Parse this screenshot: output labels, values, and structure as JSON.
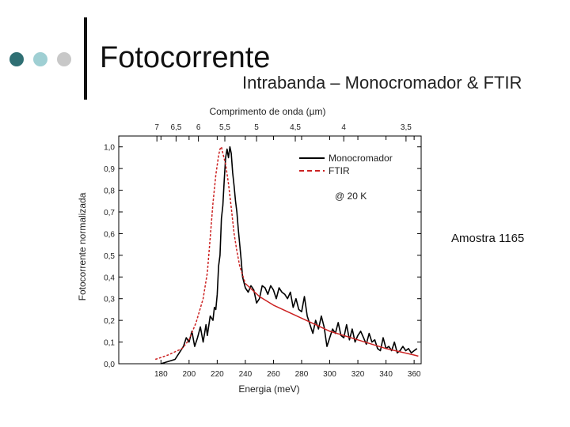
{
  "slide": {
    "title": "Fotocorrente",
    "subtitle": "Intrabanda – Monocromador & FTIR",
    "sample_label": "Amostra 1165",
    "bullet_colors": [
      "#2f6f73",
      "#9fcfd3",
      "#c8c8c8"
    ]
  },
  "chart_data": {
    "type": "line",
    "title": "",
    "xlabel": "Energia (meV)",
    "ylabel": "Fotocorrente normalizada",
    "x2label": "Comprimento de onda (µm)",
    "xlim": [
      150,
      365
    ],
    "ylim": [
      0,
      1.05
    ],
    "xticks": [
      "180",
      "200",
      "220",
      "240",
      "260",
      "280",
      "300",
      "320",
      "340",
      "360"
    ],
    "yticks": [
      "0,0",
      "0,1",
      "0,2",
      "0,3",
      "0,4",
      "0,5",
      "0,6",
      "0,7",
      "0,8",
      "0,9",
      "1,0"
    ],
    "top_ticks": [
      {
        "um": 7,
        "label": "7"
      },
      {
        "um": 6.5,
        "label": "6,5"
      },
      {
        "um": 6,
        "label": "6"
      },
      {
        "um": 5.5,
        "label": "5,5"
      },
      {
        "um": 5,
        "label": "5"
      },
      {
        "um": 4.5,
        "label": "4,5"
      },
      {
        "um": 4,
        "label": "4"
      },
      {
        "um": 3.5,
        "label": "3,5"
      }
    ],
    "annotation": "@ 20 K",
    "legend_position": "top-right",
    "grid": false,
    "series": [
      {
        "name": "Monocromador",
        "color": "#000000",
        "style": "solid",
        "x": [
          180,
          190,
          193,
          196,
          198,
          200,
          202,
          204,
          206,
          208,
          210,
          212,
          213,
          215,
          217,
          218,
          219,
          220,
          221,
          222,
          223,
          224,
          225,
          226,
          227,
          228,
          229,
          230,
          231,
          232,
          233,
          234,
          235,
          236,
          237,
          238,
          240,
          242,
          244,
          246,
          248,
          250,
          252,
          254,
          256,
          258,
          260,
          262,
          264,
          266,
          268,
          270,
          272,
          274,
          276,
          278,
          280,
          282,
          284,
          286,
          288,
          290,
          292,
          294,
          296,
          298,
          300,
          302,
          304,
          306,
          308,
          310,
          312,
          314,
          316,
          318,
          320,
          322,
          324,
          326,
          328,
          330,
          332,
          334,
          336,
          338,
          340,
          342,
          344,
          346,
          348,
          350,
          352,
          354,
          356,
          358,
          360,
          362
        ],
        "values": [
          0.0,
          0.02,
          0.05,
          0.08,
          0.12,
          0.1,
          0.15,
          0.08,
          0.12,
          0.17,
          0.1,
          0.18,
          0.13,
          0.22,
          0.2,
          0.26,
          0.25,
          0.32,
          0.45,
          0.5,
          0.67,
          0.73,
          0.85,
          0.95,
          0.99,
          0.95,
          1.0,
          0.97,
          0.88,
          0.82,
          0.75,
          0.7,
          0.62,
          0.55,
          0.48,
          0.4,
          0.35,
          0.33,
          0.36,
          0.34,
          0.28,
          0.3,
          0.36,
          0.35,
          0.32,
          0.36,
          0.34,
          0.3,
          0.35,
          0.33,
          0.32,
          0.3,
          0.33,
          0.26,
          0.3,
          0.25,
          0.24,
          0.31,
          0.22,
          0.18,
          0.14,
          0.2,
          0.16,
          0.22,
          0.17,
          0.08,
          0.12,
          0.16,
          0.14,
          0.19,
          0.13,
          0.12,
          0.18,
          0.11,
          0.16,
          0.1,
          0.13,
          0.15,
          0.12,
          0.09,
          0.14,
          0.1,
          0.11,
          0.07,
          0.06,
          0.12,
          0.07,
          0.08,
          0.06,
          0.1,
          0.05,
          0.06,
          0.08,
          0.06,
          0.07,
          0.05,
          0.06,
          0.07
        ]
      },
      {
        "name": "FTIR",
        "color": "#cc2222",
        "style": "dashed",
        "x": [
          176,
          185,
          195,
          200,
          205,
          210,
          213,
          215,
          217,
          219,
          221,
          222,
          223,
          224,
          226,
          228,
          230,
          232,
          234,
          236,
          240
        ],
        "values": [
          0.02,
          0.04,
          0.07,
          0.11,
          0.19,
          0.3,
          0.42,
          0.58,
          0.74,
          0.87,
          0.96,
          0.99,
          1.0,
          0.97,
          0.92,
          0.83,
          0.72,
          0.6,
          0.52,
          0.45,
          0.37
        ]
      },
      {
        "name": "",
        "color": "#cc2222",
        "style": "solid",
        "x": [
          240,
          250,
          260,
          270,
          280,
          290,
          300,
          310,
          320,
          330,
          340,
          350,
          360,
          363
        ],
        "values": [
          0.37,
          0.31,
          0.27,
          0.24,
          0.21,
          0.18,
          0.15,
          0.13,
          0.11,
          0.09,
          0.07,
          0.055,
          0.04,
          0.035
        ]
      }
    ]
  }
}
